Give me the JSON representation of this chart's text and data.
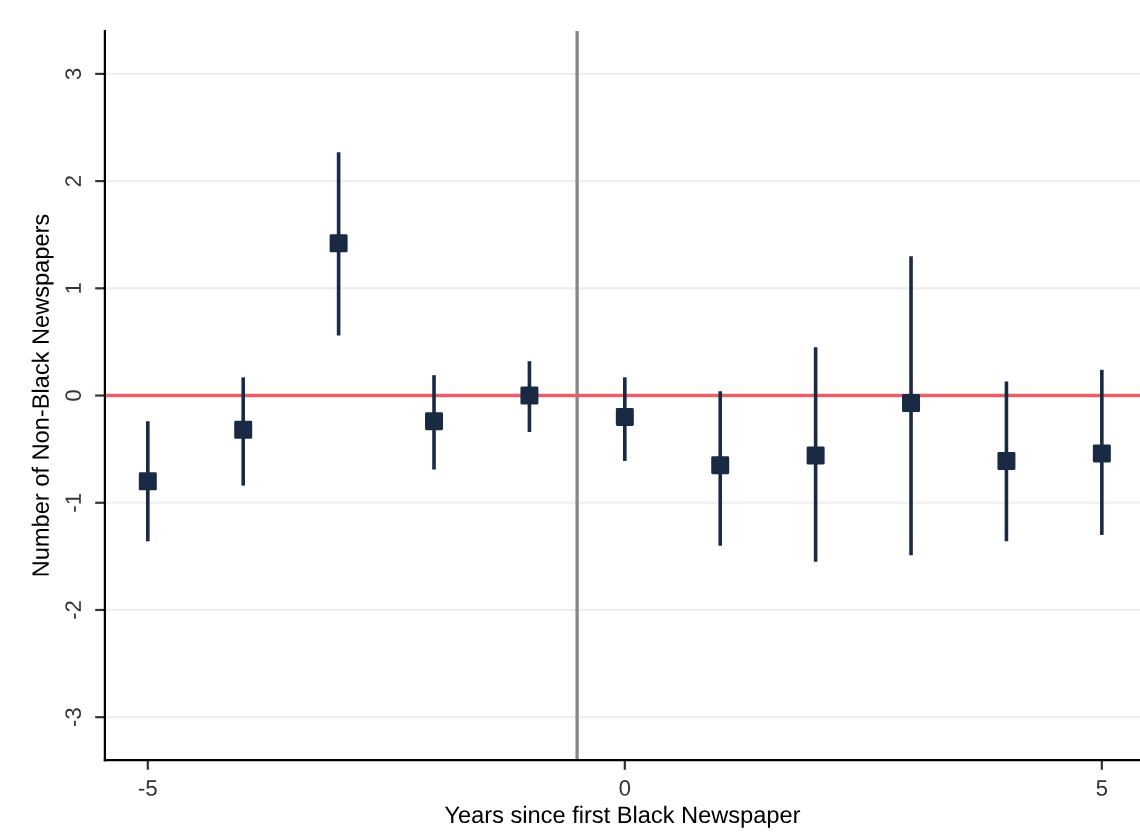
{
  "chart_data": {
    "type": "scatter",
    "xlabel": "Years since first Black Newspaper",
    "ylabel": "Number of Non-Black Newspapers",
    "x": [
      -5,
      -4,
      -3,
      -2,
      -1,
      0,
      1,
      2,
      3,
      4,
      5
    ],
    "series": [
      {
        "color": "#1a2a44",
        "values": [
          -0.8,
          -0.32,
          1.42,
          -0.24,
          0.0,
          -0.2,
          -0.65,
          -0.56,
          -0.07,
          -0.61,
          -0.54
        ],
        "errors": [
          [
            -1.36,
            -0.24
          ],
          [
            -0.84,
            0.17
          ],
          [
            0.56,
            2.27
          ],
          [
            -0.69,
            0.19
          ],
          [
            -0.34,
            0.32
          ],
          [
            -0.61,
            0.17
          ],
          [
            -1.4,
            0.04
          ],
          [
            -1.55,
            0.45
          ],
          [
            -1.49,
            1.3
          ],
          [
            -1.36,
            0.13
          ],
          [
            -1.3,
            0.24
          ]
        ]
      }
    ],
    "xlim": [
      -5.45,
      5.4
    ],
    "ylim": [
      -3.4,
      3.4
    ],
    "xticks": [
      -5,
      0,
      5
    ],
    "yticks": [
      -3,
      -2,
      -1,
      0,
      1,
      2,
      3
    ],
    "ref_lines": [
      {
        "axis": "x",
        "value": -0.5,
        "color": "#888888"
      },
      {
        "axis": "y",
        "value": 0,
        "color": "#e8606a"
      }
    ],
    "grid": "y",
    "marker": "square",
    "legend": false
  }
}
